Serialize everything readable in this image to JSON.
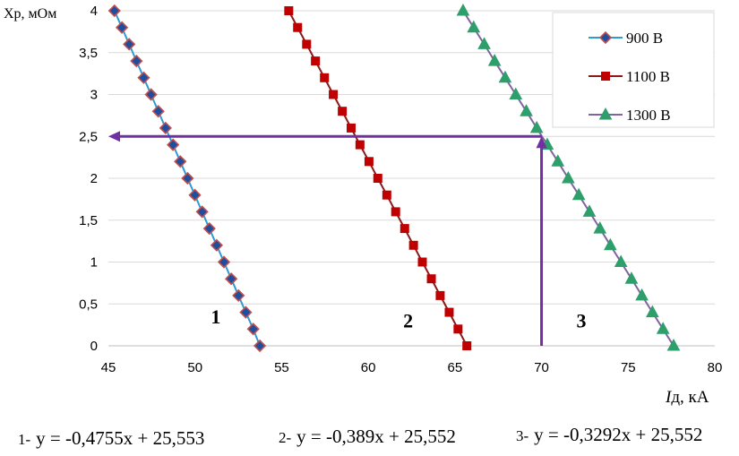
{
  "chart_data": {
    "type": "line",
    "title": "",
    "xlabel_italic": "I",
    "xlabel_rest": "д, кА",
    "ylabel": "Xp, мОм",
    "xlim": [
      45,
      80
    ],
    "ylim": [
      0,
      4
    ],
    "x_ticks": [
      "45",
      "50",
      "55",
      "60",
      "65",
      "70",
      "75",
      "80"
    ],
    "y_ticks": [
      "0",
      "0,5",
      "1",
      "1,5",
      "2",
      "2,5",
      "3",
      "3,5",
      "4"
    ],
    "grid": "horizontal",
    "legend_position": "top-right",
    "series": [
      {
        "name": "900 В",
        "color": "#2E9BD6",
        "marker_color": "#1F4E9E",
        "marker_edge": "#C0504D",
        "marker": "diamond",
        "x": [
          45.35,
          45.78,
          46.2,
          46.62,
          47.04,
          47.46,
          47.88,
          48.3,
          48.73,
          49.15,
          49.57,
          49.99,
          50.41,
          50.83,
          51.25,
          51.67,
          52.09,
          52.51,
          52.93,
          53.36,
          53.74
        ],
        "values": [
          4.0,
          3.8,
          3.6,
          3.4,
          3.2,
          3.0,
          2.8,
          2.6,
          2.4,
          2.2,
          2.0,
          1.8,
          1.6,
          1.4,
          1.2,
          1.0,
          0.8,
          0.6,
          0.4,
          0.2,
          0.0
        ]
      },
      {
        "name": "1100 В",
        "color": "#8B1A1A",
        "marker_color": "#C00000",
        "marker_edge": "#C00000",
        "marker": "square",
        "x": [
          55.41,
          55.92,
          56.44,
          56.95,
          57.47,
          57.98,
          58.5,
          59.01,
          59.52,
          60.04,
          60.55,
          61.07,
          61.58,
          62.1,
          62.61,
          63.12,
          63.64,
          64.15,
          64.67,
          65.18,
          65.69
        ],
        "values": [
          4.0,
          3.8,
          3.6,
          3.4,
          3.2,
          3.0,
          2.8,
          2.6,
          2.4,
          2.2,
          2.0,
          1.8,
          1.6,
          1.4,
          1.2,
          1.0,
          0.8,
          0.6,
          0.4,
          0.2,
          0.0
        ]
      },
      {
        "name": "1300 В",
        "color": "#8064A2",
        "marker_color": "#2E9E6B",
        "marker_edge": "#2E9E6B",
        "marker": "triangle",
        "x": [
          65.47,
          66.08,
          66.69,
          67.29,
          67.9,
          68.51,
          69.12,
          69.72,
          70.33,
          70.94,
          71.54,
          72.15,
          72.76,
          73.37,
          73.97,
          74.58,
          75.19,
          75.79,
          76.4,
          77.01,
          77.62
        ],
        "values": [
          4.0,
          3.8,
          3.6,
          3.4,
          3.2,
          3.0,
          2.8,
          2.6,
          2.4,
          2.2,
          2.0,
          1.8,
          1.6,
          1.4,
          1.2,
          1.0,
          0.8,
          0.6,
          0.4,
          0.2,
          0.0
        ]
      }
    ],
    "arrow": {
      "color": "#7030A0",
      "x_value": 70,
      "y_value": 2.5
    },
    "curve_labels": [
      {
        "text": "1",
        "x": 51.2,
        "y": 0.27
      },
      {
        "text": "2",
        "x": 62.3,
        "y": 0.22
      },
      {
        "text": "3",
        "x": 72.3,
        "y": 0.22
      }
    ],
    "equations": [
      {
        "num": "1-",
        "formula": "y = -0,4755x + 25,553"
      },
      {
        "num": "2-",
        "formula": "y = -0,389x + 25,552"
      },
      {
        "num": "3-",
        "formula": "y = -0,3292x + 25,552"
      }
    ]
  }
}
